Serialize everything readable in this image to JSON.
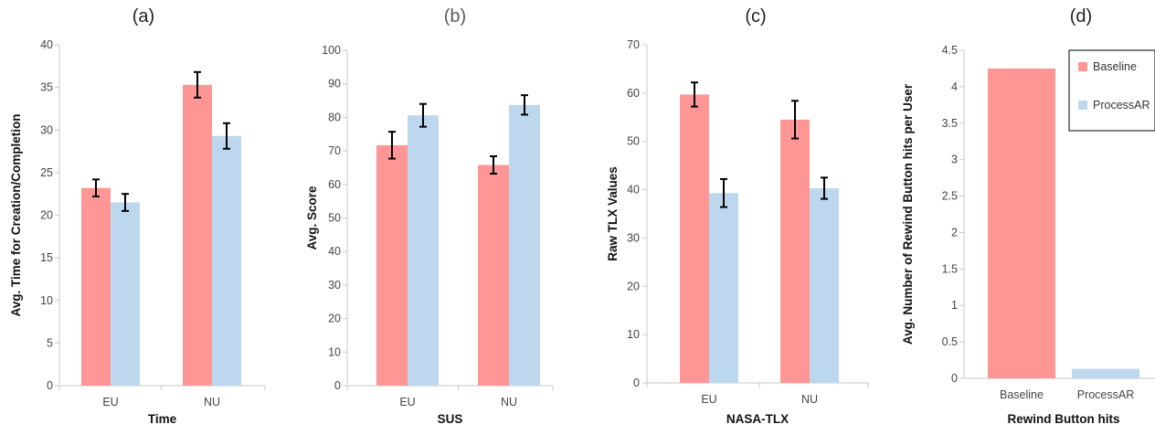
{
  "colors": {
    "baseline": "#ff9696",
    "processar": "#bdd7ee",
    "axis": "#c8c8c8",
    "error": "#000000"
  },
  "chart_data": [
    {
      "type": "bar",
      "panel_label": "(a)",
      "title": "",
      "categories": [
        "EU",
        "NU"
      ],
      "series": [
        {
          "values": [
            23.2,
            35.3
          ],
          "errors": [
            1.0,
            1.5
          ]
        },
        {
          "values": [
            21.5,
            29.3
          ],
          "errors": [
            1.0,
            1.5
          ]
        }
      ],
      "xlabel": "Time",
      "ylabel": "Avg. Time for Creation/Completion",
      "ylim": [
        0,
        40
      ],
      "yticks": [
        "0",
        "5",
        "10",
        "15",
        "20",
        "25",
        "30",
        "35",
        "40"
      ],
      "grid": false
    },
    {
      "type": "bar",
      "panel_label": "(b)",
      "title": "",
      "categories": [
        "EU",
        "NU"
      ],
      "series": [
        {
          "values": [
            71.7,
            65.8
          ],
          "errors": [
            4.0,
            2.6
          ]
        },
        {
          "values": [
            80.6,
            83.7
          ],
          "errors": [
            3.4,
            2.9
          ]
        }
      ],
      "xlabel": "SUS",
      "ylabel": "Avg. Score",
      "ylim": [
        0,
        100
      ],
      "yticks": [
        "0",
        "10",
        "20",
        "30",
        "40",
        "50",
        "60",
        "70",
        "80",
        "90",
        "100"
      ],
      "grid": false
    },
    {
      "type": "bar",
      "panel_label": "(c)",
      "title": "",
      "categories": [
        "EU",
        "NU"
      ],
      "series": [
        {
          "values": [
            59.7,
            54.5
          ],
          "errors": [
            2.5,
            3.9
          ]
        },
        {
          "values": [
            39.3,
            40.3
          ],
          "errors": [
            2.9,
            2.2
          ]
        }
      ],
      "xlabel": "NASA-TLX",
      "ylabel": "Raw TLX Values",
      "ylim": [
        0,
        70
      ],
      "yticks": [
        "0",
        "10",
        "20",
        "30",
        "40",
        "50",
        "60",
        "70"
      ],
      "grid": false
    },
    {
      "type": "bar",
      "panel_label": "(d)",
      "title": "",
      "categories": [
        "Baseline",
        "ProcessAR"
      ],
      "series": [
        {
          "name": "Baseline",
          "values": [
            4.25,
            null
          ]
        },
        {
          "name": "ProcessAR",
          "values": [
            null,
            0.13
          ]
        }
      ],
      "xlabel": "Rewind Button hits",
      "ylabel": "Avg. Number of Rewind Button hits per User",
      "ylim": [
        0,
        4.5
      ],
      "yticks": [
        "0",
        "0.5",
        "1",
        "1.5",
        "2",
        "2.5",
        "3",
        "3.5",
        "4",
        "4.5"
      ],
      "grid": false,
      "legend": "top-right"
    }
  ]
}
